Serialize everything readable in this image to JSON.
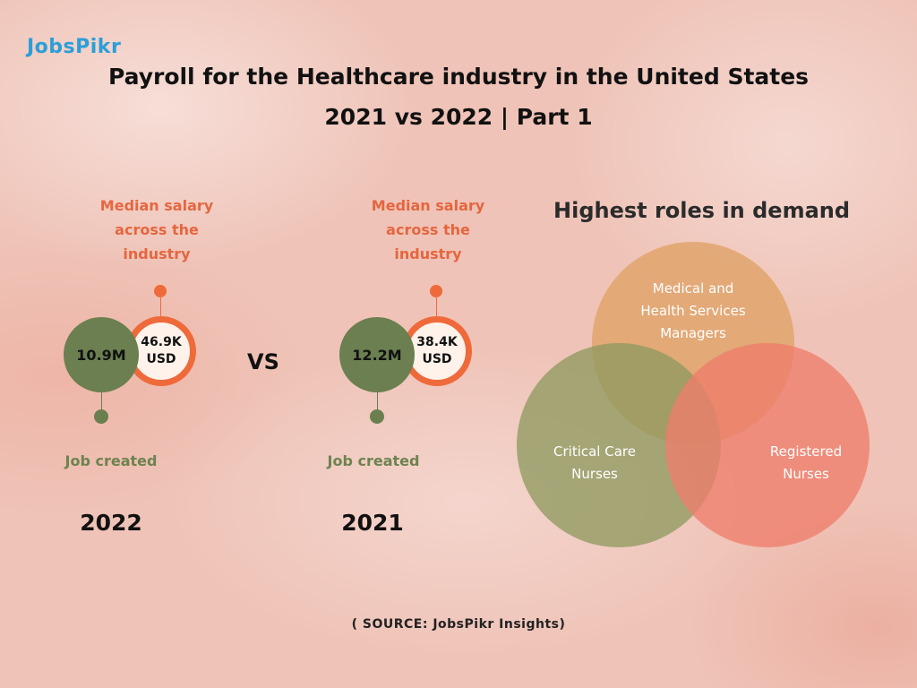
{
  "logo": {
    "text": "JobsPikr"
  },
  "title": {
    "line1": "Payroll for the Healthcare industry in the United States",
    "line2": "2021 vs 2022 | Part 1"
  },
  "comparison": {
    "vs_label": "VS",
    "years": [
      {
        "year": "2022",
        "median_label": [
          "Median salary",
          "across the",
          "industry"
        ],
        "jobs_value": "10.9M",
        "salary_value": "46.9K",
        "salary_unit": "USD",
        "jobs_label": "Job created"
      },
      {
        "year": "2021",
        "median_label": [
          "Median salary",
          "across the",
          "industry"
        ],
        "jobs_value": "12.2M",
        "salary_value": "38.4K",
        "salary_unit": "USD",
        "jobs_label": "Job created"
      }
    ]
  },
  "venn": {
    "title": "Highest roles in demand",
    "sets": [
      {
        "label_lines": [
          "Medical and",
          "Health Services",
          "Managers"
        ],
        "color": "#e0a46c"
      },
      {
        "label_lines": [
          "Critical Care",
          "Nurses"
        ],
        "color": "#8f9a60"
      },
      {
        "label_lines": [
          "Registered",
          "Nurses"
        ],
        "color": "#ee7d6c"
      }
    ]
  },
  "source": "( SOURCE: JobsPikr Insights)",
  "colors": {
    "accent_orange": "#ef6a3a",
    "accent_green": "#6b7f50",
    "logo_blue": "#2a9fd8"
  }
}
